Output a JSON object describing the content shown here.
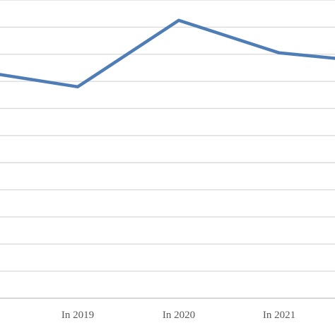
{
  "chart_data": {
    "type": "line",
    "title": "",
    "xlabel": "",
    "ylabel": "",
    "categories": [
      "",
      "In 2019",
      "In 2020",
      "In 2021",
      ""
    ],
    "series": [
      {
        "values": [
          8.25,
          7.8,
          10.25,
          9.05,
          8.85
        ]
      }
    ],
    "ylim": [
      0,
      11
    ],
    "grid": true,
    "legend": "none",
    "colors": {
      "line": "#4f7db5",
      "grid": "#d9d9d9",
      "axis": "#bfbfbf",
      "tick_text": "#595959"
    }
  }
}
